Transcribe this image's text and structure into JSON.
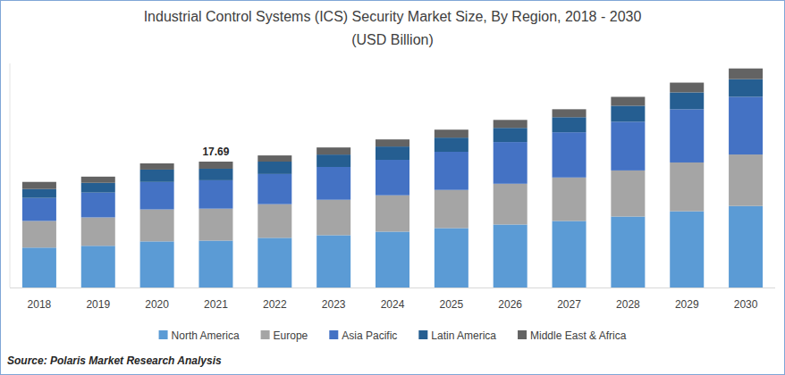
{
  "chart_data": {
    "type": "bar",
    "stacked": true,
    "title": "Industrial Control Systems (ICS) Security Market Size, By Region, 2018 - 2030",
    "subtitle": "(USD Billion)",
    "source": "Source: Polaris Market Research Analysis",
    "categories": [
      "2018",
      "2019",
      "2020",
      "2021",
      "2022",
      "2023",
      "2024",
      "2025",
      "2026",
      "2027",
      "2028",
      "2029",
      "2030"
    ],
    "series": [
      {
        "name": "North America",
        "color": "#5b9bd5",
        "values": [
          5.61,
          5.86,
          6.48,
          6.59,
          6.98,
          7.35,
          7.85,
          8.35,
          8.85,
          9.35,
          9.97,
          10.72,
          11.46
        ]
      },
      {
        "name": "Europe",
        "color": "#a5a5a5",
        "values": [
          3.74,
          3.99,
          4.49,
          4.49,
          4.73,
          4.98,
          5.11,
          5.36,
          5.73,
          6.11,
          6.48,
          6.85,
          7.23
        ]
      },
      {
        "name": "Asia Pacific",
        "color": "#4472c4",
        "values": [
          3.24,
          3.49,
          3.86,
          3.99,
          4.24,
          4.61,
          4.98,
          5.36,
          5.86,
          6.35,
          6.85,
          7.48,
          8.1
        ]
      },
      {
        "name": "Latin America",
        "color": "#255e91",
        "values": [
          1.25,
          1.37,
          1.74,
          1.62,
          1.74,
          1.74,
          1.87,
          1.99,
          1.99,
          2.12,
          2.24,
          2.37,
          2.49
        ]
      },
      {
        "name": "Middle East & Africa",
        "color": "#636363",
        "values": [
          1.0,
          0.87,
          0.87,
          1.0,
          0.87,
          1.0,
          1.0,
          1.12,
          1.12,
          1.12,
          1.25,
          1.37,
          1.5
        ]
      }
    ],
    "annotations": [
      {
        "category": "2021",
        "value": 17.69
      }
    ],
    "ylim": [
      0,
      31.5
    ],
    "yticks": [],
    "tick_labels": "x",
    "grid": false,
    "legend": "bottom"
  }
}
